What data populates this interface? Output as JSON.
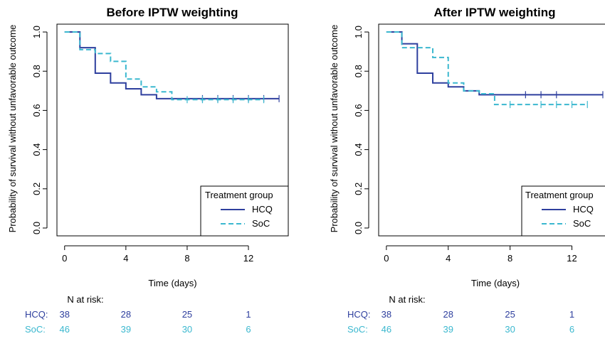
{
  "colors": {
    "HCQ": "#2e3f9e",
    "SoC": "#3bb8cf"
  },
  "risk_label": "N at risk:",
  "chart_data": [
    {
      "type": "line",
      "subtype": "kaplan-meier",
      "title": "Before IPTW weighting",
      "xlabel": "Time (days)",
      "ylabel": "Probability of survival without unfavorable outcome",
      "xlim": [
        0,
        14
      ],
      "ylim": [
        0,
        1
      ],
      "xticks": [
        "0",
        "4",
        "8",
        "12"
      ],
      "yticks": [
        "0.0",
        "0.2",
        "0.4",
        "0.6",
        "0.8",
        "1.0"
      ],
      "grid": false,
      "legend": {
        "title": "Treatment group",
        "position": "bottom-right"
      },
      "series": [
        {
          "name": "HCQ",
          "line": "solid",
          "x": [
            0,
            1,
            2,
            3,
            4,
            5,
            6,
            14
          ],
          "y": [
            1.0,
            0.92,
            0.79,
            0.74,
            0.71,
            0.68,
            0.66,
            0.66
          ],
          "censor_x": [
            9,
            10,
            11,
            12,
            13,
            14
          ]
        },
        {
          "name": "SoC",
          "line": "dashed",
          "x": [
            0,
            1,
            2,
            3,
            4,
            5,
            6,
            7,
            13
          ],
          "y": [
            1.0,
            0.91,
            0.89,
            0.85,
            0.76,
            0.72,
            0.695,
            0.655,
            0.655
          ],
          "censor_x": [
            8,
            9,
            10,
            11,
            12,
            13
          ]
        }
      ],
      "risk_table": {
        "times": [
          0,
          4,
          8,
          12
        ],
        "rows": [
          {
            "label": "HCQ:",
            "group": "HCQ",
            "values": [
              "38",
              "28",
              "25",
              "1"
            ]
          },
          {
            "label": "SoC:",
            "group": "SoC",
            "values": [
              "46",
              "39",
              "30",
              "6"
            ]
          }
        ]
      }
    },
    {
      "type": "line",
      "subtype": "kaplan-meier",
      "title": "After IPTW weighting",
      "xlabel": "Time (days)",
      "ylabel": "Probability of survival without unfavorable outcome",
      "xlim": [
        0,
        14
      ],
      "ylim": [
        0,
        1
      ],
      "xticks": [
        "0",
        "4",
        "8",
        "12"
      ],
      "yticks": [
        "0.0",
        "0.2",
        "0.4",
        "0.6",
        "0.8",
        "1.0"
      ],
      "grid": false,
      "legend": {
        "title": "Treatment group",
        "position": "bottom-right"
      },
      "series": [
        {
          "name": "HCQ",
          "line": "solid",
          "x": [
            0,
            1,
            2,
            3,
            4,
            5,
            6,
            14
          ],
          "y": [
            1.0,
            0.94,
            0.79,
            0.74,
            0.72,
            0.7,
            0.68,
            0.68
          ],
          "censor_x": [
            9,
            10,
            11,
            14
          ]
        },
        {
          "name": "SoC",
          "line": "dashed",
          "x": [
            0,
            1,
            3,
            4,
            5,
            6,
            7,
            13
          ],
          "y": [
            1.0,
            0.92,
            0.87,
            0.74,
            0.7,
            0.685,
            0.63,
            0.63
          ],
          "censor_x": [
            8,
            10,
            11,
            12,
            13
          ]
        }
      ],
      "risk_table": {
        "times": [
          0,
          4,
          8,
          12
        ],
        "rows": [
          {
            "label": "HCQ:",
            "group": "HCQ",
            "values": [
              "38",
              "28",
              "25",
              "1"
            ]
          },
          {
            "label": "SoC:",
            "group": "SoC",
            "values": [
              "46",
              "39",
              "30",
              "6"
            ]
          }
        ]
      }
    }
  ]
}
